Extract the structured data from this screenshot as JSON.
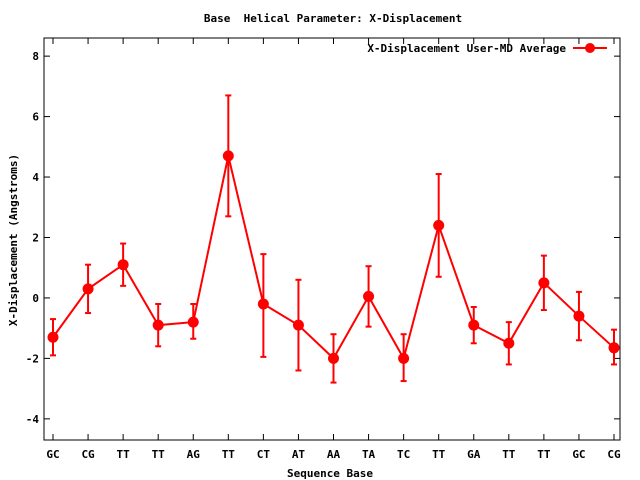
{
  "chart_data": {
    "type": "line",
    "title": "Base  Helical Parameter: X-Displacement",
    "xlabel": "Sequence Base",
    "ylabel": "X-Displacement (Angstroms)",
    "ylim": [
      -4.7,
      8.6
    ],
    "yticks": [
      -4,
      -2,
      0,
      2,
      4,
      6,
      8
    ],
    "categories": [
      "GC",
      "CG",
      "TT",
      "TT",
      "AG",
      "TT",
      "CT",
      "AT",
      "AA",
      "TA",
      "TC",
      "TT",
      "GA",
      "TT",
      "TT",
      "GC",
      "CG"
    ],
    "series": [
      {
        "name": "X-Displacement User-MD Average",
        "color": "#ff0000",
        "values": [
          -1.3,
          0.3,
          1.1,
          -0.9,
          -0.8,
          4.7,
          -0.2,
          -0.9,
          -2.0,
          0.05,
          -2.0,
          2.4,
          -0.9,
          -1.5,
          0.5,
          -0.6,
          -1.65
        ],
        "err_low": [
          -1.9,
          -0.5,
          0.4,
          -1.6,
          -1.35,
          2.7,
          -1.95,
          -2.4,
          -2.8,
          -0.95,
          -2.75,
          0.7,
          -1.5,
          -2.2,
          -0.4,
          -1.4,
          -2.2
        ],
        "err_high": [
          -0.7,
          1.1,
          1.8,
          -0.2,
          -0.2,
          6.7,
          1.45,
          0.6,
          -1.2,
          1.05,
          -1.2,
          4.1,
          -0.3,
          -0.8,
          1.4,
          0.2,
          -1.05
        ]
      }
    ],
    "legend_position": "top-right",
    "grid": false
  }
}
